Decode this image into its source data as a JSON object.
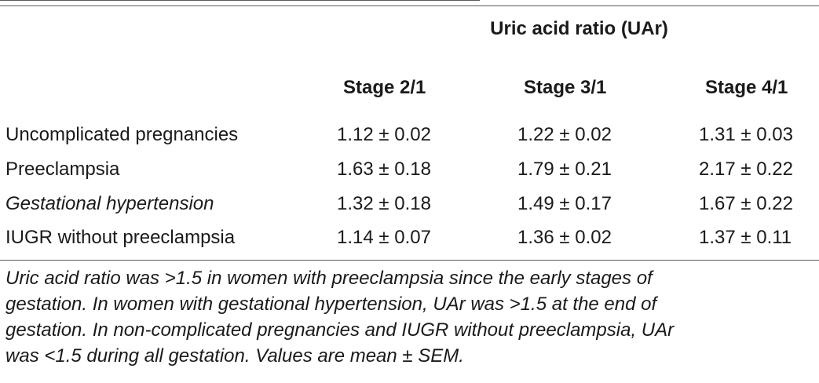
{
  "table": {
    "group_header": "Uric acid ratio (UAr)",
    "columns": [
      "Stage 2/1",
      "Stage 3/1",
      "Stage 4/1"
    ],
    "rows": [
      {
        "label": "Uncomplicated pregnancies",
        "italic": false,
        "values": [
          "1.12 ± 0.02",
          "1.22 ± 0.02",
          "1.31 ± 0.03"
        ]
      },
      {
        "label": "Preeclampsia",
        "italic": false,
        "values": [
          "1.63 ± 0.18",
          "1.79 ± 0.21",
          "2.17 ± 0.22"
        ]
      },
      {
        "label": "Gestational hypertension",
        "italic": true,
        "values": [
          "1.32 ± 0.18",
          "1.49 ± 0.17",
          "1.67 ± 0.22"
        ]
      },
      {
        "label": "IUGR without preeclampsia",
        "italic": false,
        "values": [
          "1.14 ± 0.07",
          "1.36 ± 0.02",
          "1.37 ± 0.11"
        ]
      }
    ]
  },
  "footnote": {
    "lines": [
      "Uric acid ratio was >1.5 in women with preeclampsia since the early stages of",
      "gestation. In women with gestational hypertension, UAr was >1.5 at the end of",
      "gestation. In non-complicated pregnancies and IUGR without preeclampsia, UAr",
      "was <1.5 during all gestation. Values are mean ± SEM."
    ]
  }
}
